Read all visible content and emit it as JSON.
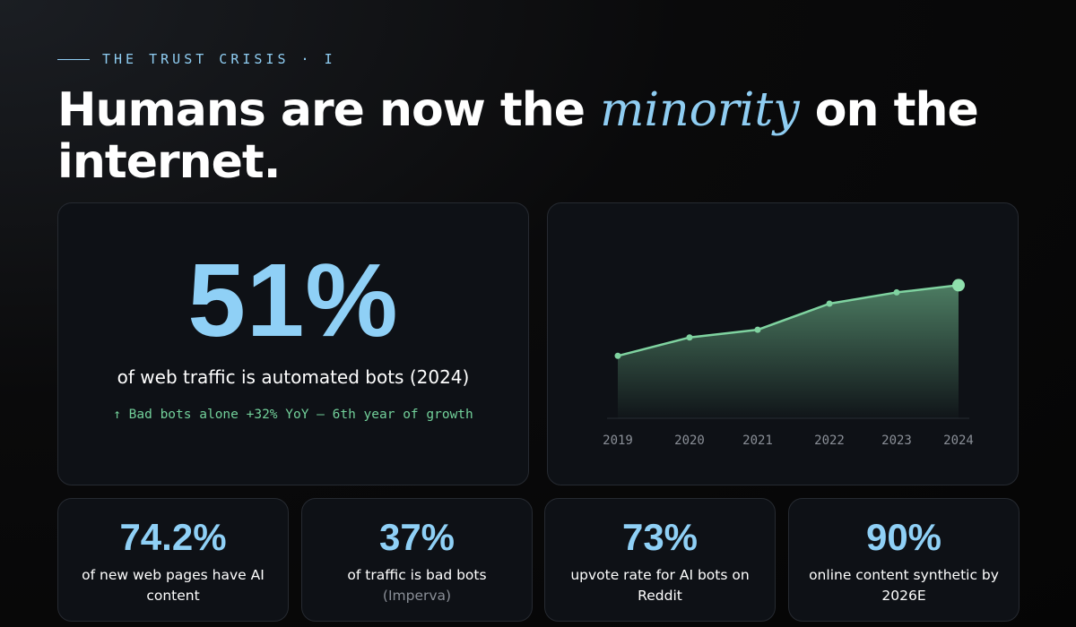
{
  "eyebrow": "THE TRUST CRISIS · I",
  "headline": {
    "before": "Humans are now the ",
    "accent": "minority",
    "after": " on the internet."
  },
  "hero": {
    "value": "51%",
    "caption": "of web traffic is automated bots (2024)",
    "note": "↑ Bad bots alone +32% YoY — 6th year of growth"
  },
  "stats": [
    {
      "value": "74.2%",
      "label": "of new web pages have AI content",
      "sublabel": ""
    },
    {
      "value": "37%",
      "label": "of traffic is bad bots",
      "sublabel": "(Imperva)"
    },
    {
      "value": "73%",
      "label": "upvote rate for AI bots on Reddit",
      "sublabel": ""
    },
    {
      "value": "90%",
      "label": "online content synthetic by 2026E",
      "sublabel": ""
    }
  ],
  "colors": {
    "accent_blue": "#8fd0f6",
    "accent_green": "#7fd3a0",
    "card_bg": "#0e1116",
    "card_border": "#262a31"
  },
  "chart_data": {
    "type": "area",
    "x": [
      "2019",
      "2020",
      "2021",
      "2022",
      "2023",
      "2024"
    ],
    "series": [
      {
        "values": [
          37.2,
          40.8,
          42.3,
          47.4,
          49.6,
          51
        ]
      }
    ],
    "ylim": [
      25,
      60
    ],
    "title": "",
    "xlabel": "",
    "ylabel": "",
    "grid": false,
    "legend": "none",
    "highlight_last_point": true
  }
}
